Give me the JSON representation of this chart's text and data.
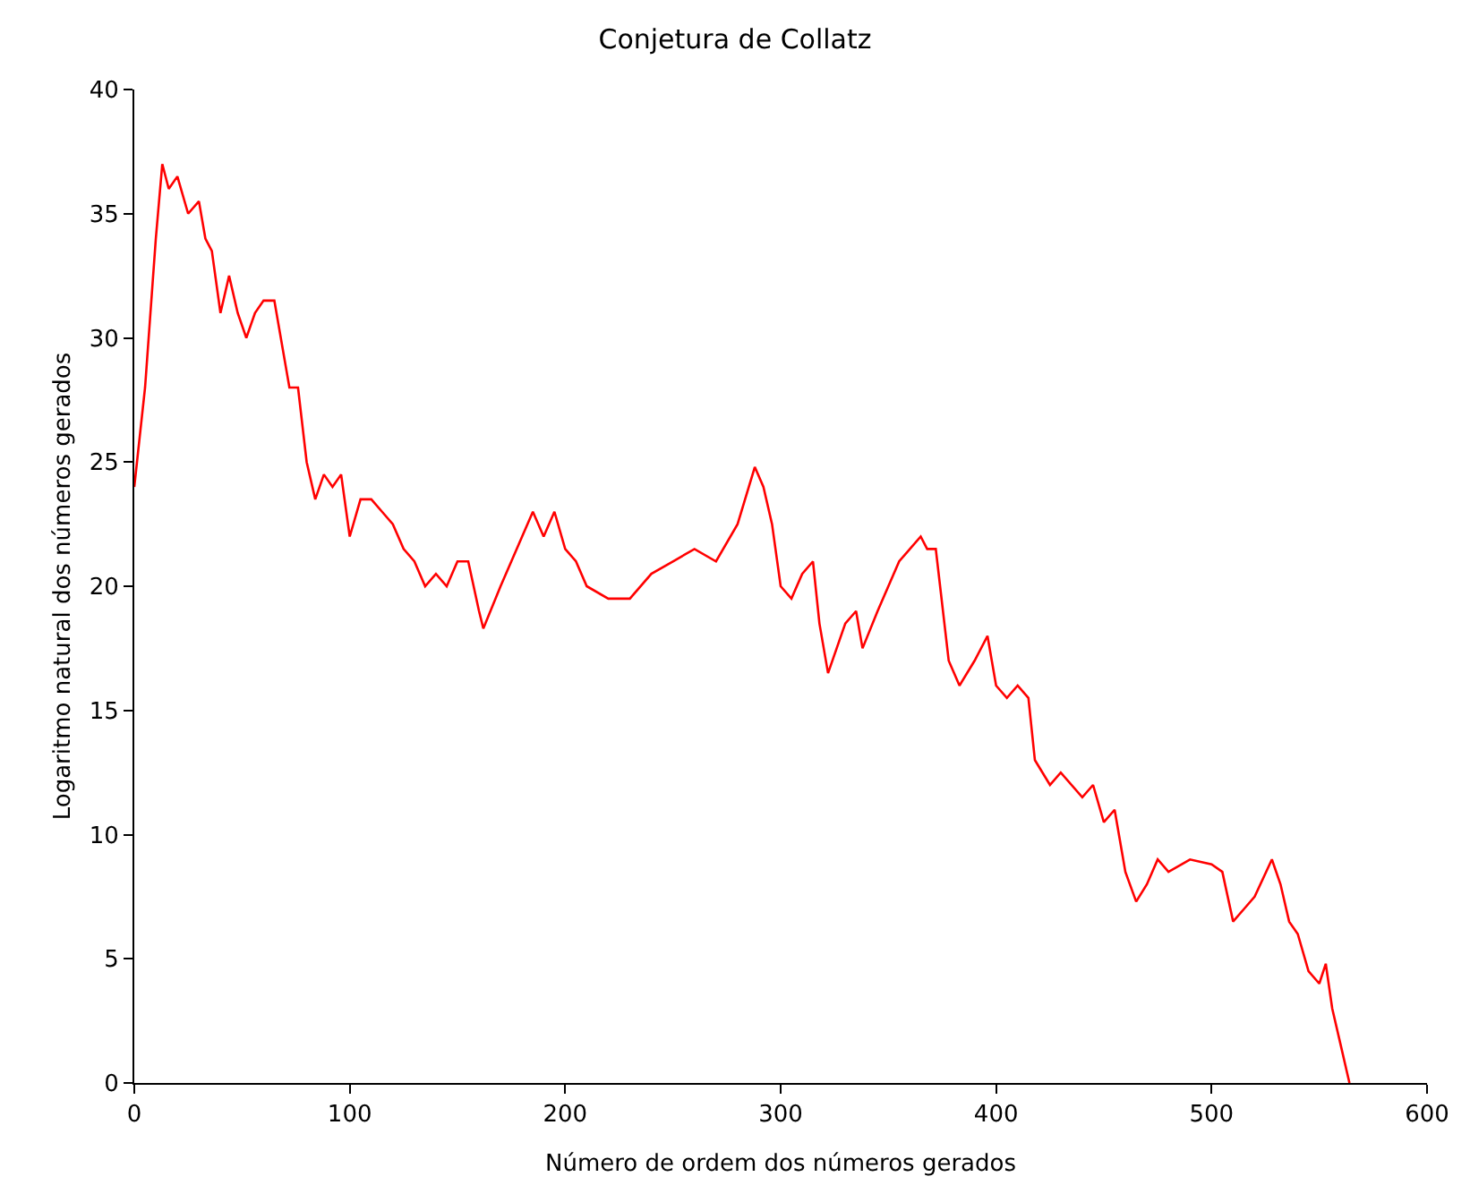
{
  "chart_data": {
    "type": "line",
    "title": "Conjetura de Collatz",
    "xlabel": "Número de ordem dos números gerados",
    "ylabel": "Logaritmo natural dos números gerados",
    "x": [
      0,
      5,
      10,
      13,
      16,
      20,
      25,
      30,
      33,
      36,
      40,
      44,
      48,
      52,
      56,
      60,
      65,
      68,
      72,
      76,
      80,
      84,
      88,
      92,
      96,
      100,
      105,
      110,
      115,
      120,
      125,
      130,
      135,
      140,
      145,
      150,
      155,
      160,
      162,
      170,
      180,
      185,
      190,
      195,
      200,
      205,
      210,
      220,
      230,
      240,
      250,
      260,
      270,
      280,
      288,
      292,
      296,
      300,
      305,
      310,
      315,
      318,
      322,
      330,
      335,
      338,
      345,
      355,
      365,
      368,
      372,
      378,
      383,
      390,
      396,
      400,
      405,
      410,
      415,
      418,
      425,
      430,
      440,
      445,
      450,
      455,
      460,
      465,
      470,
      475,
      480,
      490,
      500,
      505,
      510,
      515,
      520,
      528,
      532,
      536,
      540,
      545,
      550,
      553,
      556,
      560,
      564
    ],
    "series": [
      {
        "color": "#ff0000",
        "values": [
          24,
          28,
          34,
          37,
          36,
          36.5,
          35,
          35.5,
          34,
          33.5,
          31,
          32.5,
          31,
          30,
          31,
          31.5,
          31.5,
          30,
          28,
          28,
          25,
          23.5,
          24.5,
          24,
          24.5,
          22,
          23.5,
          23.5,
          23,
          22.5,
          21.5,
          21,
          20,
          20.5,
          20,
          21,
          21,
          19,
          18.3,
          20,
          22,
          23,
          22,
          23,
          21.5,
          21,
          20,
          19.5,
          19.5,
          20.5,
          21,
          21.5,
          21,
          22.5,
          24.8,
          24,
          22.5,
          20,
          19.5,
          20.5,
          21,
          18.5,
          16.5,
          18.5,
          19,
          17.5,
          19,
          21,
          22,
          21.5,
          21.5,
          17,
          16,
          17,
          18,
          16,
          15.5,
          16,
          15.5,
          13,
          12,
          12.5,
          11.5,
          12,
          10.5,
          11,
          8.5,
          7.3,
          8,
          9,
          8.5,
          9,
          8.8,
          8.5,
          6.5,
          7,
          7.5,
          9,
          8,
          6.5,
          6,
          4.5,
          4,
          4.8,
          3,
          1.5,
          0
        ]
      }
    ],
    "xlim": [
      0,
      600
    ],
    "xticks": [
      0,
      100,
      200,
      300,
      400,
      500,
      600
    ],
    "ylim": [
      0,
      40
    ],
    "yticks": [
      0,
      5,
      10,
      15,
      20,
      25,
      30,
      35,
      40
    ]
  }
}
